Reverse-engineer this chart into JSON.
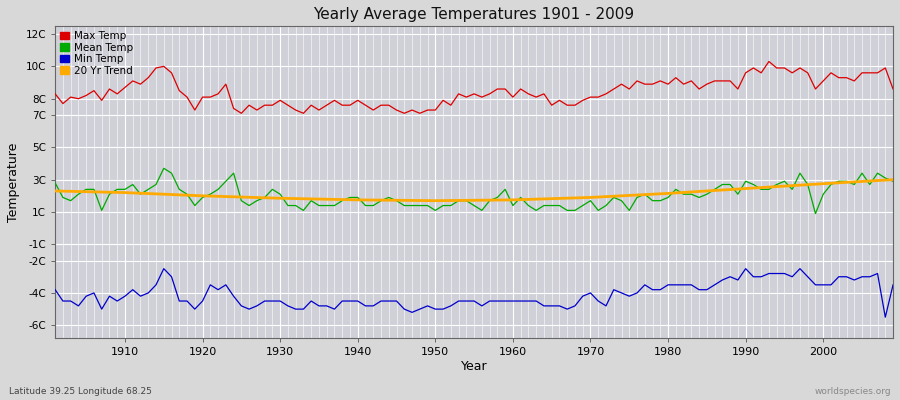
{
  "title": "Yearly Average Temperatures 1901 - 2009",
  "xlabel": "Year",
  "ylabel": "Temperature",
  "years": [
    1901,
    1902,
    1903,
    1904,
    1905,
    1906,
    1907,
    1908,
    1909,
    1910,
    1911,
    1912,
    1913,
    1914,
    1915,
    1916,
    1917,
    1918,
    1919,
    1920,
    1921,
    1922,
    1923,
    1924,
    1925,
    1926,
    1927,
    1928,
    1929,
    1930,
    1931,
    1932,
    1933,
    1934,
    1935,
    1936,
    1937,
    1938,
    1939,
    1940,
    1941,
    1942,
    1943,
    1944,
    1945,
    1946,
    1947,
    1948,
    1949,
    1950,
    1951,
    1952,
    1953,
    1954,
    1955,
    1956,
    1957,
    1958,
    1959,
    1960,
    1961,
    1962,
    1963,
    1964,
    1965,
    1966,
    1967,
    1968,
    1969,
    1970,
    1971,
    1972,
    1973,
    1974,
    1975,
    1976,
    1977,
    1978,
    1979,
    1980,
    1981,
    1982,
    1983,
    1984,
    1985,
    1986,
    1987,
    1988,
    1989,
    1990,
    1991,
    1992,
    1993,
    1994,
    1995,
    1996,
    1997,
    1998,
    1999,
    2000,
    2001,
    2002,
    2003,
    2004,
    2005,
    2006,
    2007,
    2008,
    2009
  ],
  "max_temp": [
    8.3,
    7.7,
    8.1,
    8.0,
    8.2,
    8.5,
    7.9,
    8.6,
    8.3,
    8.7,
    9.1,
    8.9,
    9.3,
    9.9,
    10.0,
    9.6,
    8.5,
    8.1,
    7.3,
    8.1,
    8.1,
    8.3,
    8.9,
    7.4,
    7.1,
    7.6,
    7.3,
    7.6,
    7.6,
    7.9,
    7.6,
    7.3,
    7.1,
    7.6,
    7.3,
    7.6,
    7.9,
    7.6,
    7.6,
    7.9,
    7.6,
    7.3,
    7.6,
    7.6,
    7.3,
    7.1,
    7.3,
    7.1,
    7.3,
    7.3,
    7.9,
    7.6,
    8.3,
    8.1,
    8.3,
    8.1,
    8.3,
    8.6,
    8.6,
    8.1,
    8.6,
    8.3,
    8.1,
    8.3,
    7.6,
    7.9,
    7.6,
    7.6,
    7.9,
    8.1,
    8.1,
    8.3,
    8.6,
    8.9,
    8.6,
    9.1,
    8.9,
    8.9,
    9.1,
    8.9,
    9.3,
    8.9,
    9.1,
    8.6,
    8.9,
    9.1,
    9.1,
    9.1,
    8.6,
    9.6,
    9.9,
    9.6,
    10.3,
    9.9,
    9.9,
    9.6,
    9.9,
    9.6,
    8.6,
    9.1,
    9.6,
    9.3,
    9.3,
    9.1,
    9.6,
    9.6,
    9.6,
    9.9,
    8.6
  ],
  "mean_temp": [
    2.8,
    1.9,
    1.7,
    2.1,
    2.4,
    2.4,
    1.1,
    2.1,
    2.4,
    2.4,
    2.7,
    2.1,
    2.4,
    2.7,
    3.7,
    3.4,
    2.4,
    2.1,
    1.4,
    1.9,
    2.1,
    2.4,
    2.9,
    3.4,
    1.7,
    1.4,
    1.7,
    1.9,
    2.4,
    2.1,
    1.4,
    1.4,
    1.1,
    1.7,
    1.4,
    1.4,
    1.4,
    1.7,
    1.9,
    1.9,
    1.4,
    1.4,
    1.7,
    1.9,
    1.7,
    1.4,
    1.4,
    1.4,
    1.4,
    1.1,
    1.4,
    1.4,
    1.7,
    1.7,
    1.4,
    1.1,
    1.7,
    1.9,
    2.4,
    1.4,
    1.9,
    1.4,
    1.1,
    1.4,
    1.4,
    1.4,
    1.1,
    1.1,
    1.4,
    1.7,
    1.1,
    1.4,
    1.9,
    1.7,
    1.1,
    1.9,
    2.1,
    1.7,
    1.7,
    1.9,
    2.4,
    2.1,
    2.1,
    1.9,
    2.1,
    2.4,
    2.7,
    2.7,
    2.1,
    2.9,
    2.7,
    2.4,
    2.4,
    2.7,
    2.9,
    2.4,
    3.4,
    2.7,
    0.9,
    2.1,
    2.7,
    2.9,
    2.9,
    2.7,
    3.4,
    2.7,
    3.4,
    3.1,
    2.9
  ],
  "min_temp": [
    -3.8,
    -4.5,
    -4.5,
    -4.8,
    -4.2,
    -4.0,
    -5.0,
    -4.2,
    -4.5,
    -4.2,
    -3.8,
    -4.2,
    -4.0,
    -3.5,
    -2.5,
    -3.0,
    -4.5,
    -4.5,
    -5.0,
    -4.5,
    -3.5,
    -3.8,
    -3.5,
    -4.2,
    -4.8,
    -5.0,
    -4.8,
    -4.5,
    -4.5,
    -4.5,
    -4.8,
    -5.0,
    -5.0,
    -4.5,
    -4.8,
    -4.8,
    -5.0,
    -4.5,
    -4.5,
    -4.5,
    -4.8,
    -4.8,
    -4.5,
    -4.5,
    -4.5,
    -5.0,
    -5.2,
    -5.0,
    -4.8,
    -5.0,
    -5.0,
    -4.8,
    -4.5,
    -4.5,
    -4.5,
    -4.8,
    -4.5,
    -4.5,
    -4.5,
    -4.5,
    -4.5,
    -4.5,
    -4.5,
    -4.8,
    -4.8,
    -4.8,
    -5.0,
    -4.8,
    -4.2,
    -4.0,
    -4.5,
    -4.8,
    -3.8,
    -4.0,
    -4.2,
    -4.0,
    -3.5,
    -3.8,
    -3.8,
    -3.5,
    -3.5,
    -3.5,
    -3.5,
    -3.8,
    -3.8,
    -3.5,
    -3.2,
    -3.0,
    -3.2,
    -2.5,
    -3.0,
    -3.0,
    -2.8,
    -2.8,
    -2.8,
    -3.0,
    -2.5,
    -3.0,
    -3.5,
    -3.5,
    -3.5,
    -3.0,
    -3.0,
    -3.2,
    -3.0,
    -3.0,
    -2.8,
    -5.5,
    -3.5
  ],
  "trend_years": [
    1901,
    1910,
    1920,
    1930,
    1940,
    1950,
    1960,
    1970,
    1980,
    1990,
    2000,
    2009
  ],
  "trend_vals": [
    2.3,
    2.2,
    2.0,
    1.85,
    1.75,
    1.7,
    1.75,
    1.9,
    2.15,
    2.45,
    2.75,
    3.0
  ],
  "background_color": "#d8d8d8",
  "plot_bg_color": "#d0d0d8",
  "max_color": "#dd0000",
  "mean_color": "#00aa00",
  "min_color": "#0000cc",
  "trend_color": "#ffaa00",
  "grid_color": "#ffffff",
  "yticks": [
    -6,
    -4,
    -2,
    -1,
    1,
    3,
    5,
    7,
    8,
    10,
    12
  ],
  "ytick_labels": [
    "-6C",
    "-4C",
    "-2C",
    "-1C",
    "1C",
    "3C",
    "5C",
    "7C",
    "8C",
    "10C",
    "12C"
  ],
  "xticks": [
    1910,
    1920,
    1930,
    1940,
    1950,
    1960,
    1970,
    1980,
    1990,
    2000
  ],
  "xlim": [
    1901,
    2009
  ],
  "ylim": [
    -6.8,
    12.5
  ],
  "footer_left": "Latitude 39.25 Longitude 68.25",
  "footer_right": "worldspecies.org"
}
